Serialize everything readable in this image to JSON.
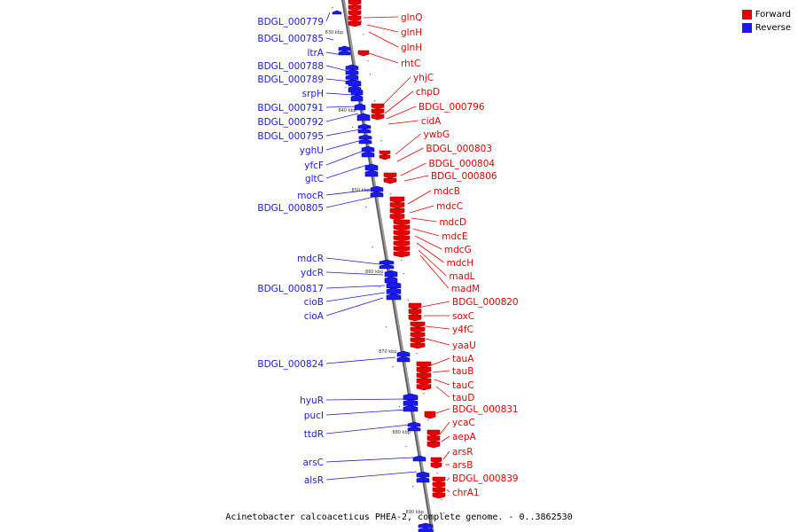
{
  "legend": {
    "forward": {
      "label": "Forward",
      "color": "#e60000"
    },
    "reverse": {
      "label": "Reverse",
      "color": "#1a1aee"
    }
  },
  "caption": "Acinetobacter calcoaceticus PHEA-2, complete genome. - 0..3862530",
  "tick_labels": [
    "830 kbp",
    "840 kbp",
    "850 kbp",
    "860 kbp",
    "870 kbp",
    "880 kbp",
    "890 kbp"
  ],
  "reverse_genes": [
    "BDGL_000779",
    "BDGL_000785",
    "ltrA",
    "BDGL_000788",
    "BDGL_000789",
    "srpH",
    "BDGL_000791",
    "BDGL_000792",
    "BDGL_000795",
    "yghU",
    "yfcF",
    "gltC",
    "mocR",
    "BDGL_000805",
    "mdcR",
    "ydcR",
    "BDGL_000817",
    "cioB",
    "cioA",
    "BDGL_000824",
    "hyuR",
    "pucI",
    "ttdR",
    "arsC",
    "alsR"
  ],
  "forward_genes": [
    "glnQ",
    "glnH",
    "glnH",
    "rhtC",
    "yhjC",
    "chpD",
    "BDGL_000796",
    "cidA",
    "ywbG",
    "BDGL_000803",
    "BDGL_000804",
    "BDGL_000806",
    "mdcB",
    "mdcC",
    "mdcD",
    "mdcE",
    "mdcG",
    "mdcH",
    "madL",
    "madM",
    "BDGL_000820",
    "soxC",
    "y4fC",
    "yaaU",
    "tauA",
    "tauB",
    "tauC",
    "tauD",
    "BDGL_000831",
    "ycaC",
    "aepA",
    "arsR",
    "arsB",
    "BDGL_000839",
    "chrA1"
  ]
}
